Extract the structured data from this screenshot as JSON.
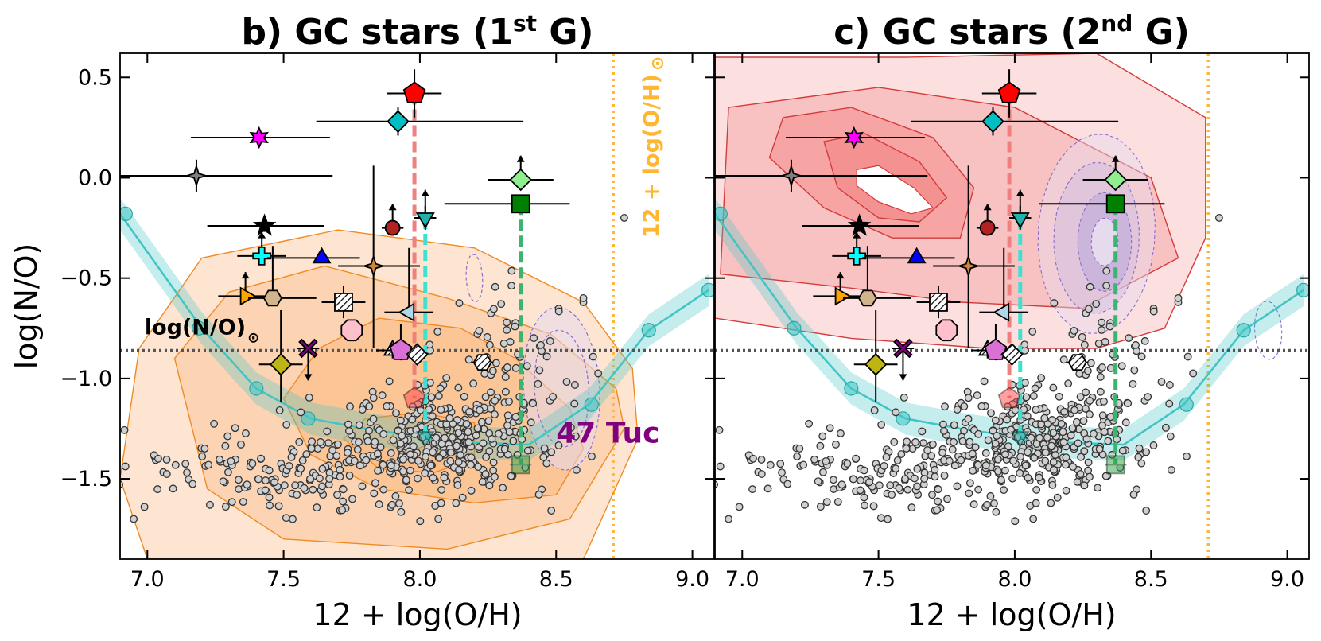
{
  "chart_data": [
    {
      "type": "scatter",
      "panel": "left",
      "title_main": "b) GC stars (1",
      "title_sup": "st",
      "title_end": " G)",
      "xlabel": "12 + log(O/H)",
      "ylabel": "log(N/O)",
      "xlim": [
        6.9,
        9.08
      ],
      "ylim": [
        -1.9,
        0.62
      ],
      "xticks": [
        "7.0",
        "7.5",
        "8.0",
        "8.5",
        "9.0"
      ],
      "yticks": [
        "0.5",
        "0.0",
        "−0.5",
        "−1.0",
        "−1.5"
      ],
      "annotations": {
        "solar_label": "12 + log(O/H)",
        "solar_symbol": "⊙",
        "no_label": "log(N/O)",
        "no_symbol": "⊙",
        "tuc_label": "47 Tuc"
      },
      "contours": "1st G distribution (orange filled contours), 47 Tuc (purple dashed)"
    },
    {
      "type": "scatter",
      "panel": "right",
      "title_main": "c) GC stars (2",
      "title_sup": "nd",
      "title_end": " G)",
      "xlabel": "12 + log(O/H)",
      "xlim": [
        6.9,
        9.08
      ],
      "ylim": [
        -1.9,
        0.62
      ],
      "xticks": [
        "7.0",
        "7.5",
        "8.0",
        "8.5",
        "9.0"
      ],
      "contours": "2nd G distribution (red filled contours), 47 Tuc (purple filled + dashed)"
    }
  ],
  "reference_lines": {
    "solar_oh": 8.71,
    "solar_no": -0.86
  },
  "model_track": {
    "x": [
      6.9,
      7.2,
      7.4,
      7.6,
      7.8,
      8.0,
      8.2,
      8.4,
      8.62,
      8.84,
      9.06
    ],
    "y": [
      -0.18,
      -0.75,
      -1.05,
      -1.2,
      -1.25,
      -1.29,
      -1.32,
      -1.33,
      -1.13,
      -0.76,
      -0.56
    ],
    "markers": [
      [
        6.92,
        -0.18
      ],
      [
        7.19,
        -0.75
      ],
      [
        7.4,
        -1.05
      ],
      [
        7.59,
        -1.2
      ],
      [
        8.02,
        -1.29
      ],
      [
        8.63,
        -1.13
      ],
      [
        8.84,
        -0.76
      ],
      [
        9.06,
        -0.56
      ]
    ]
  },
  "galaxies": [
    {
      "name": "pentagon-red",
      "x": 7.98,
      "y": 0.42,
      "xe": 0.1,
      "ye": 0.12,
      "shape": "pentagon",
      "color": "#ff0000"
    },
    {
      "name": "diamond-cyan",
      "x": 7.92,
      "y": 0.28,
      "xe": [
        0.3,
        0.46
      ],
      "ye": 0.07,
      "shape": "diamond",
      "color": "#00bfc4"
    },
    {
      "name": "star6-magenta",
      "x": 7.41,
      "y": 0.2,
      "xe": [
        0.25,
        0.26
      ],
      "ye": 0.0,
      "shape": "star6",
      "color": "#ff00ff"
    },
    {
      "name": "star4-gray",
      "x": 7.18,
      "y": 0.01,
      "xe": [
        0.29,
        0.5
      ],
      "ye": 0.08,
      "shape": "star4",
      "color": "#7f7f7f"
    },
    {
      "name": "diamond-lightgreen",
      "x": 8.37,
      "y": -0.01,
      "xe": 0.12,
      "ye": 0.0,
      "lower_limit": true,
      "shape": "diamond",
      "color": "#90ee90"
    },
    {
      "name": "square-green",
      "x": 8.37,
      "y": -0.13,
      "xe": [
        0.28,
        0.18
      ],
      "ye": 0.0,
      "shape": "square",
      "color": "#008000"
    },
    {
      "name": "circle-darkred",
      "x": 7.9,
      "y": -0.25,
      "xe": 0.04,
      "ye": 0.0,
      "lower_limit": true,
      "shape": "circle",
      "color": "#b22222"
    },
    {
      "name": "triangle-down-cyan",
      "x": 8.02,
      "y": -0.2,
      "xe": 0.04,
      "ye": 0.06,
      "lower_limit": true,
      "shape": "triangle-down",
      "color": "#20b2aa"
    },
    {
      "name": "star5-black",
      "x": 7.43,
      "y": -0.24,
      "xe": [
        0.21,
        0.22
      ],
      "ye": 0.03,
      "shape": "star5",
      "color": "#000000"
    },
    {
      "name": "plus-cyan",
      "x": 7.42,
      "y": -0.39,
      "xe": [
        0.09,
        0.09
      ],
      "ye": 0.0,
      "lower_limit": true,
      "shape": "plus",
      "color": "#00ffff"
    },
    {
      "name": "triangle-up-blue",
      "x": 7.64,
      "y": -0.4,
      "xe": [
        0.2,
        0.14
      ],
      "ye": 0.0,
      "shape": "triangle-up",
      "color": "#0000ff"
    },
    {
      "name": "star4-brown",
      "x": 7.83,
      "y": -0.44,
      "xe": [
        0.13,
        0.17
      ],
      "ye": [
        0.41,
        0.5
      ],
      "shape": "star4",
      "color": "#cd853f"
    },
    {
      "name": "square-hatched",
      "x": 7.72,
      "y": -0.62,
      "xe": 0.08,
      "ye": 0.08,
      "shape": "square-hatch",
      "color": "#ffffff"
    },
    {
      "name": "triangle-right-orange",
      "x": 7.36,
      "y": -0.59,
      "xe": [
        0.1,
        0.07
      ],
      "ye": 0.0,
      "lower_limit": true,
      "shape": "triangle-right",
      "color": "#ffa500"
    },
    {
      "name": "hexagon-tan",
      "x": 7.46,
      "y": -0.6,
      "xe": [
        0.09,
        0.16
      ],
      "ye": [
        0.0,
        0.26
      ],
      "shape": "hexagon",
      "color": "#d2b48c"
    },
    {
      "name": "triangle-left-lightblue",
      "x": 7.96,
      "y": -0.67,
      "xe": 0.09,
      "ye": [
        0.0,
        0.32
      ],
      "shape": "triangle-left",
      "color": "#add8e6"
    },
    {
      "name": "octagon-pink",
      "x": 7.75,
      "y": -0.76,
      "xe": 0.0,
      "ye": 0.0,
      "shape": "octagon",
      "color": "#ffc0cb"
    },
    {
      "name": "cross-purple",
      "x": 7.59,
      "y": -0.85,
      "xe": 0.04,
      "ye": 0.0,
      "upper_limit": true,
      "shape": "cross",
      "color": "#800080"
    },
    {
      "name": "triangle-up-hatched",
      "x": 7.9,
      "y": -0.86,
      "xe": 0.06,
      "ye": 0.04,
      "shape": "triangle-hatch",
      "color": "#ffffff"
    },
    {
      "name": "pentagon-orchid",
      "x": 7.93,
      "y": -0.86,
      "xe": 0.08,
      "ye": [
        0.05,
        0.13
      ],
      "shape": "pentagon",
      "color": "#da70d6"
    },
    {
      "name": "diamond-hatched",
      "x": 7.99,
      "y": -0.88,
      "xe": 0.03,
      "ye": 0.0,
      "shape": "diamond-hatch",
      "color": "#ffffff"
    },
    {
      "name": "hexagon-hatched",
      "x": 8.23,
      "y": -0.92,
      "xe": 0.04,
      "ye": 0.0,
      "shape": "hexagon-hatch",
      "color": "#ffffff"
    },
    {
      "name": "diamond-olive",
      "x": 7.49,
      "y": -0.93,
      "xe": 0.08,
      "ye": [
        0.19,
        0.27
      ],
      "shape": "diamond",
      "color": "#bdb513"
    },
    {
      "name": "pentagon-red-faded",
      "x": 7.98,
      "y": -1.1,
      "xe": 0.0,
      "ye": 0.0,
      "shape": "pentagon",
      "color": "#ff4444",
      "faded": true
    },
    {
      "name": "triangle-down-cyan-faded",
      "x": 8.02,
      "y": -1.29,
      "xe": 0.0,
      "ye": 0.0,
      "shape": "triangle-down",
      "color": "#20b2aa",
      "faded": true
    },
    {
      "name": "square-green-faded",
      "x": 8.37,
      "y": -1.43,
      "xe": 0.04,
      "ye": 0.0,
      "shape": "square",
      "color": "#2ea043",
      "faded": true
    }
  ],
  "connectors": [
    {
      "x": 7.98,
      "y0": 0.42,
      "y1": -1.1,
      "color": "#f08080"
    },
    {
      "x": 8.02,
      "y0": -0.2,
      "y1": -1.29,
      "color": "#40e0d0"
    },
    {
      "x": 8.37,
      "y0": -0.13,
      "y1": -1.43,
      "color": "#3cb371"
    }
  ]
}
